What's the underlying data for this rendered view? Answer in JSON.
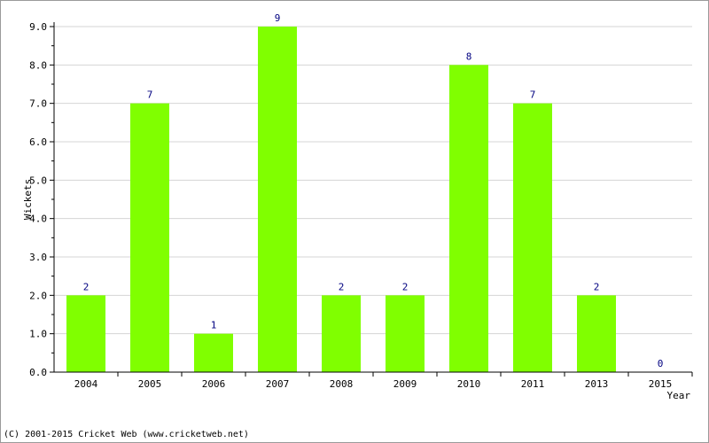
{
  "chart_data": {
    "type": "bar",
    "categories": [
      "2004",
      "2005",
      "2006",
      "2007",
      "2008",
      "2009",
      "2010",
      "2011",
      "2013",
      "2015"
    ],
    "values": [
      2,
      7,
      1,
      9,
      2,
      2,
      8,
      7,
      2,
      0
    ],
    "xlabel": "Year",
    "ylabel": "Wickets",
    "ylim": [
      0,
      9
    ],
    "yticks": [
      "0.0",
      "1.0",
      "2.0",
      "3.0",
      "4.0",
      "5.0",
      "6.0",
      "7.0",
      "8.0",
      "9.0"
    ],
    "grid": true,
    "bar_color": "#80ff00",
    "label_color": "#000080"
  },
  "footer": {
    "copyright": "(C) 2001-2015 Cricket Web (www.cricketweb.net)"
  }
}
